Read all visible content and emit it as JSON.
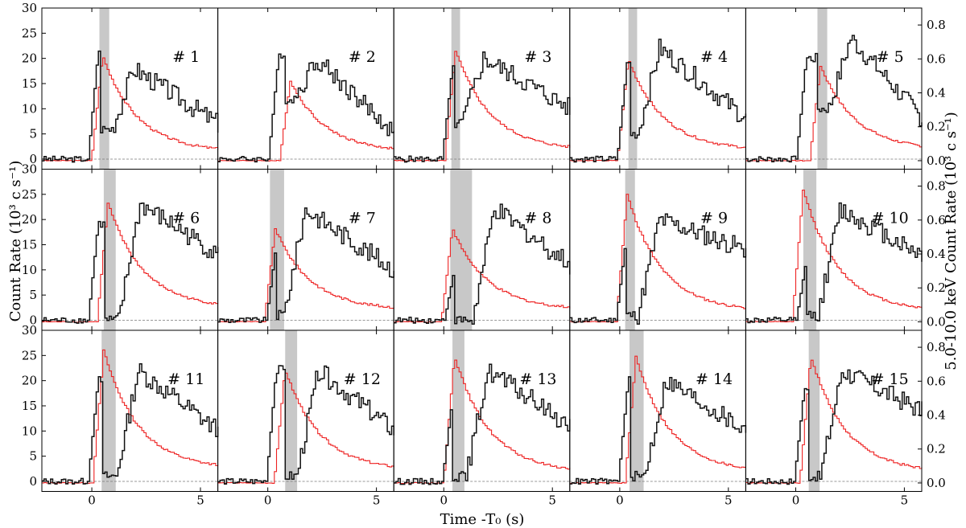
{
  "figure": {
    "y_left_label": "Count Rate (10³ c s⁻¹)",
    "y_right_label": "5.0-10.0 keV Count Rate (10³ c s⁻¹)",
    "x_label": "Time -T₀ (s)"
  },
  "chart_data": {
    "type": "line",
    "layout_grid": "3x5",
    "xlim": [
      -2.3,
      5.8
    ],
    "ylim_left": [
      -2,
      30
    ],
    "ylim_right": [
      -0.05,
      0.9
    ],
    "x_ticks": [
      0,
      5
    ],
    "y_ticks_left": [
      0,
      5,
      10,
      15,
      20,
      25,
      30
    ],
    "y_ticks_right": [
      0.0,
      0.2,
      0.4,
      0.6,
      0.8
    ],
    "grid": false,
    "panels": [
      {
        "label": "# 1",
        "shade": [
          0.35,
          0.8
        ],
        "black": {
          "rise": 0.1,
          "peak": 21,
          "dip": 6,
          "dip_range": [
            0.4,
            0.9
          ],
          "late": 18,
          "tail": 7,
          "decay_end": 5.8
        },
        "red": {
          "peak": 0.62,
          "t_peak": 0.45,
          "tail": 0.05
        }
      },
      {
        "label": "# 2",
        "shade": null,
        "black": {
          "rise": 0.3,
          "peak": 20,
          "dip": 12,
          "dip_range": [
            0.8,
            1.2
          ],
          "late": 20,
          "tail": 5,
          "decay_end": 5.8
        },
        "red": {
          "peak": 0.47,
          "t_peak": 1.0,
          "tail": 0.05
        }
      },
      {
        "label": "# 3",
        "shade": [
          0.35,
          0.75
        ],
        "black": {
          "rise": 0.2,
          "peak": 18,
          "dip": 7,
          "dip_range": [
            0.5,
            0.8
          ],
          "late": 20,
          "tail": 10,
          "decay_end": 5.8
        },
        "red": {
          "peak": 0.65,
          "t_peak": 0.5,
          "tail": 0.06
        }
      },
      {
        "label": "# 4",
        "shade": [
          0.4,
          0.8
        ],
        "black": {
          "rise": 0.15,
          "peak": 19,
          "dip": 5,
          "dip_range": [
            0.5,
            0.8
          ],
          "late": 22,
          "tail": 8,
          "decay_end": 5.8
        },
        "red": {
          "peak": 0.6,
          "t_peak": 0.35,
          "tail": 0.06
        }
      },
      {
        "label": "# 5",
        "shade": [
          1.0,
          1.45
        ],
        "black": {
          "rise": 0.3,
          "peak": 20,
          "dip": 10,
          "dip_range": [
            1.0,
            1.5
          ],
          "late": 24,
          "tail": 8,
          "decay_end": 5.8
        },
        "red": {
          "peak": 0.56,
          "t_peak": 1.1,
          "tail": 0.06
        }
      },
      {
        "label": "# 6",
        "shade": [
          0.55,
          1.1
        ],
        "black": {
          "rise": 0.1,
          "peak": 19,
          "dip": 0,
          "dip_range": [
            0.6,
            1.2
          ],
          "late": 23,
          "tail": 13,
          "decay_end": 5.8
        },
        "red": {
          "peak": 0.7,
          "t_peak": 0.7,
          "tail": 0.08
        }
      },
      {
        "label": "# 7",
        "shade": [
          0.1,
          0.75
        ],
        "black": {
          "rise": 0.2,
          "peak": 15,
          "dip": 1,
          "dip_range": [
            0.2,
            0.7
          ],
          "late": 22,
          "tail": 10,
          "decay_end": 5.8
        },
        "red": {
          "peak": 0.55,
          "t_peak": 0.3,
          "tail": 0.07
        }
      },
      {
        "label": "# 8",
        "shade": [
          0.3,
          1.3
        ],
        "black": {
          "rise": 0.3,
          "peak": 10,
          "dip": 0,
          "dip_range": [
            0.3,
            1.3
          ],
          "late": 22,
          "tail": 11,
          "decay_end": 5.8
        },
        "red": {
          "peak": 0.55,
          "t_peak": 0.35,
          "tail": 0.07
        }
      },
      {
        "label": "# 9",
        "shade": [
          0.25,
          0.7
        ],
        "black": {
          "rise": 0.1,
          "peak": 16,
          "dip": 1,
          "dip_range": [
            0.3,
            0.8
          ],
          "late": 20,
          "tail": 14,
          "decay_end": 5.8
        },
        "red": {
          "peak": 0.75,
          "t_peak": 0.3,
          "tail": 0.06
        }
      },
      {
        "label": "# 10",
        "shade": [
          0.35,
          0.95
        ],
        "black": {
          "rise": 0.3,
          "peak": 12,
          "dip": 1,
          "dip_range": [
            0.4,
            1.0
          ],
          "late": 22,
          "tail": 13,
          "decay_end": 5.8
        },
        "red": {
          "peak": 0.78,
          "t_peak": 0.3,
          "tail": 0.06
        }
      },
      {
        "label": "# 11",
        "shade": [
          0.45,
          1.1
        ],
        "black": {
          "rise": 0.1,
          "peak": 20,
          "dip": 1,
          "dip_range": [
            0.5,
            1.1
          ],
          "late": 22,
          "tail": 10,
          "decay_end": 5.8
        },
        "red": {
          "peak": 0.78,
          "t_peak": 0.5,
          "tail": 0.08
        }
      },
      {
        "label": "# 12",
        "shade": [
          0.8,
          1.35
        ],
        "black": {
          "rise": 0.2,
          "peak": 22,
          "dip": 1,
          "dip_range": [
            0.8,
            1.3
          ],
          "late": 22,
          "tail": 10,
          "decay_end": 5.8
        },
        "red": {
          "peak": 0.67,
          "t_peak": 0.75,
          "tail": 0.07
        }
      },
      {
        "label": "# 13",
        "shade": [
          0.4,
          0.95
        ],
        "black": {
          "rise": 0.2,
          "peak": 16,
          "dip": 1,
          "dip_range": [
            0.4,
            1.0
          ],
          "late": 22,
          "tail": 11,
          "decay_end": 5.8
        },
        "red": {
          "peak": 0.75,
          "t_peak": 0.45,
          "tail": 0.06
        }
      },
      {
        "label": "# 14",
        "shade": [
          0.45,
          1.1
        ],
        "black": {
          "rise": 0.2,
          "peak": 20,
          "dip": 1,
          "dip_range": [
            0.5,
            1.1
          ],
          "late": 20,
          "tail": 10,
          "decay_end": 5.8
        },
        "red": {
          "peak": 0.74,
          "t_peak": 0.7,
          "tail": 0.06
        }
      },
      {
        "label": "# 15",
        "shade": [
          0.6,
          1.1
        ],
        "black": {
          "rise": 0.2,
          "peak": 18,
          "dip": 1,
          "dip_range": [
            0.6,
            1.1
          ],
          "late": 22,
          "tail": 14,
          "decay_end": 5.8
        },
        "red": {
          "peak": 0.75,
          "t_peak": 0.65,
          "tail": 0.06
        }
      }
    ]
  }
}
